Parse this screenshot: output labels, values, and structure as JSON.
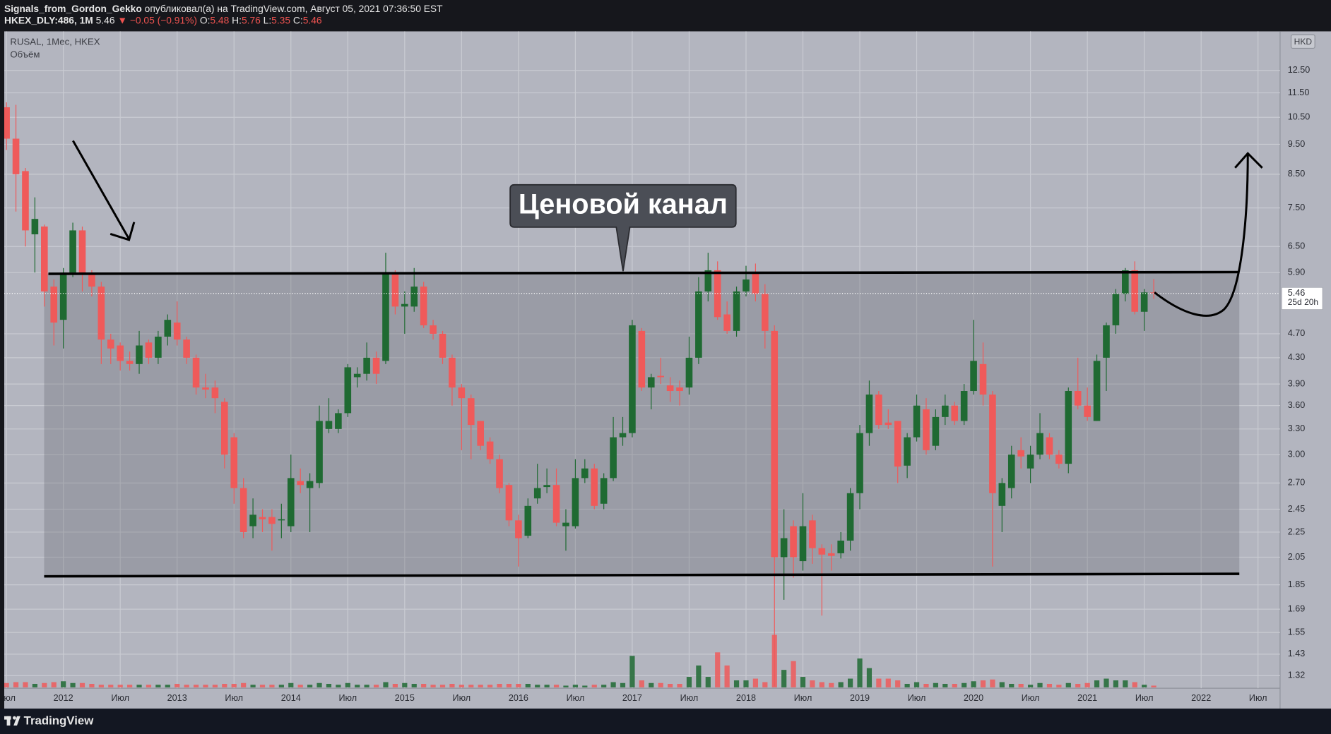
{
  "header": {
    "author": "Signals_from_Gordon_Gekko",
    "published": "опубликовал(а) на TradingView.com, Август 05, 2021 07:36:50 EST",
    "symbol": "HKEX_DLY:486, 1M",
    "last": "5.46",
    "change": "▼ −0.05 (−0.91%)",
    "o_label": "O:",
    "o": "5.48",
    "h_label": "H:",
    "h": "5.76",
    "l_label": "L:",
    "l": "5.35",
    "c_label": "C:",
    "c": "5.46"
  },
  "footer": {
    "logo": "TradingView"
  },
  "chart_data": {
    "type": "candlestick",
    "title": "RUSAL, 1Мес, HKEX",
    "volume_label": "Объём",
    "currency": "HKD",
    "annotation": "Ценовой канал",
    "last_price": 5.46,
    "countdown": "25d 20h",
    "log_scale": true,
    "grid": true,
    "up_color": "#1f6a32",
    "down_color": "#ef5a5a",
    "categories": [
      "Июл",
      null,
      null,
      null,
      null,
      null,
      "2012",
      null,
      null,
      null,
      null,
      null,
      "Июл",
      null,
      null,
      null,
      null,
      null,
      "2013",
      null,
      null,
      null,
      null,
      null,
      "Июл",
      null,
      null,
      null,
      null,
      null,
      "2014",
      null,
      null,
      null,
      null,
      null,
      "Июл",
      null,
      null,
      null,
      null,
      null,
      "2015",
      null,
      null,
      null,
      null,
      null,
      "Июл",
      null,
      null,
      null,
      null,
      null,
      "2016",
      null,
      null,
      null,
      null,
      null,
      "Июл",
      null,
      null,
      null,
      null,
      null,
      "2017",
      null,
      null,
      null,
      null,
      null,
      "Июл",
      null,
      null,
      null,
      null,
      null,
      "2018",
      null,
      null,
      null,
      null,
      null,
      "Июл",
      null,
      null,
      null,
      null,
      null,
      "2019",
      null,
      null,
      null,
      null,
      null,
      "Июл",
      null,
      null,
      null,
      null,
      null,
      "2020",
      null,
      null,
      null,
      null,
      null,
      "Июл",
      null,
      null,
      null,
      null,
      null,
      "2021",
      null,
      null,
      null,
      null,
      null,
      "Июл",
      null,
      null,
      null,
      null,
      null,
      "2022",
      null,
      null,
      null,
      null,
      null,
      "Июл",
      null,
      null
    ],
    "open": [
      10.9,
      9.7,
      8.6,
      6.8,
      7.0,
      5.6,
      4.95,
      5.9,
      6.9,
      5.9,
      5.6,
      4.6,
      4.5,
      4.25,
      4.2,
      4.55,
      4.3,
      4.65,
      4.9,
      4.6,
      4.3,
      3.85,
      3.85,
      3.65,
      3.2,
      2.65,
      2.3,
      2.38,
      2.38,
      2.35,
      2.3,
      2.72,
      2.65,
      2.7,
      3.3,
      3.3,
      3.5,
      4.0,
      4.05,
      4.3,
      4.25,
      5.9,
      5.2,
      5.2,
      5.6,
      4.85,
      4.7,
      4.3,
      3.85,
      3.7,
      3.4,
      3.15,
      2.95,
      2.68,
      2.35,
      2.22,
      2.55,
      2.66,
      2.68,
      2.3,
      2.3,
      2.75,
      2.85,
      2.5,
      2.75,
      3.2,
      3.25,
      4.75,
      3.85,
      4.02,
      3.88,
      3.85,
      3.85,
      4.3,
      5.5,
      5.95,
      5.05,
      4.75,
      5.5,
      5.9,
      5.45,
      4.75,
      2.05,
      2.3,
      2.02,
      2.35,
      2.12,
      2.08,
      2.08,
      2.18,
      2.6,
      3.25,
      3.75,
      3.38,
      3.4,
      2.88,
      3.2,
      3.55,
      3.1,
      3.45,
      3.6,
      3.4,
      3.8,
      4.2,
      3.75,
      2.48,
      2.65,
      3.05,
      2.85,
      3.0,
      3.2,
      3.0,
      2.9,
      3.8,
      3.6,
      3.4,
      4.3,
      4.85,
      5.45,
      5.95,
      5.1,
      5.48,
      null,
      null,
      null,
      null,
      null,
      null,
      null,
      null,
      null,
      null,
      null,
      null,
      null
    ],
    "high": [
      11.1,
      11.0,
      8.7,
      7.8,
      7.05,
      5.75,
      6.0,
      7.1,
      7.0,
      5.95,
      5.7,
      4.7,
      4.55,
      4.4,
      4.75,
      4.6,
      4.75,
      5.05,
      5.3,
      4.65,
      4.35,
      4.05,
      3.95,
      3.7,
      3.25,
      2.75,
      2.55,
      2.45,
      2.45,
      2.5,
      3.0,
      2.85,
      2.8,
      3.6,
      3.7,
      3.55,
      4.2,
      4.15,
      4.55,
      4.4,
      6.35,
      5.95,
      5.5,
      6.0,
      5.7,
      4.95,
      4.75,
      4.35,
      3.9,
      3.75,
      3.4,
      3.2,
      3.0,
      2.7,
      2.4,
      2.55,
      2.9,
      2.85,
      2.85,
      2.45,
      2.95,
      2.95,
      2.9,
      2.8,
      3.45,
      3.45,
      4.95,
      4.8,
      4.05,
      4.3,
      4.0,
      3.95,
      4.65,
      5.8,
      6.35,
      6.15,
      5.3,
      5.6,
      6.05,
      6.1,
      5.65,
      4.85,
      2.45,
      2.35,
      2.6,
      2.4,
      2.15,
      2.15,
      2.25,
      2.65,
      3.35,
      3.95,
      3.8,
      3.55,
      3.4,
      3.25,
      3.75,
      3.7,
      3.55,
      3.75,
      3.65,
      3.9,
      4.95,
      4.55,
      3.8,
      2.75,
      3.1,
      3.2,
      3.1,
      3.5,
      3.25,
      3.05,
      3.85,
      4.3,
      3.85,
      4.35,
      4.9,
      5.55,
      6.0,
      6.15,
      5.55,
      5.76,
      null,
      null,
      null,
      null,
      null,
      null,
      null,
      null,
      null,
      null,
      null,
      null,
      null
    ],
    "low": [
      9.3,
      7.4,
      6.5,
      5.9,
      5.2,
      4.5,
      4.45,
      5.8,
      5.5,
      5.4,
      4.2,
      4.2,
      4.1,
      4.1,
      4.05,
      4.2,
      4.2,
      4.5,
      4.5,
      4.2,
      3.75,
      3.7,
      3.5,
      2.85,
      2.5,
      2.2,
      2.2,
      2.25,
      2.1,
      2.2,
      2.25,
      2.6,
      2.25,
      2.65,
      3.25,
      3.25,
      3.45,
      3.85,
      3.95,
      3.9,
      4.2,
      5.05,
      4.7,
      5.1,
      4.8,
      4.6,
      4.2,
      3.6,
      3.05,
      2.95,
      3.05,
      2.9,
      2.6,
      2.3,
      1.98,
      2.2,
      2.5,
      2.6,
      2.3,
      2.1,
      2.28,
      2.7,
      2.45,
      2.45,
      2.72,
      3.1,
      3.2,
      3.8,
      3.55,
      3.9,
      3.65,
      3.6,
      3.75,
      4.2,
      5.3,
      4.95,
      4.7,
      4.65,
      5.4,
      5.3,
      4.45,
      1.27,
      1.75,
      1.9,
      1.95,
      2.0,
      1.65,
      1.95,
      2.04,
      2.1,
      2.45,
      3.1,
      3.3,
      3.3,
      2.7,
      2.75,
      3.15,
      3.0,
      3.05,
      3.35,
      3.35,
      3.35,
      3.75,
      3.6,
      1.98,
      2.25,
      2.55,
      2.85,
      2.7,
      2.95,
      2.95,
      2.85,
      2.8,
      3.55,
      3.4,
      3.4,
      3.8,
      4.7,
      5.3,
      5.05,
      4.75,
      5.35,
      null,
      null,
      null,
      null,
      null,
      null,
      null,
      null,
      null,
      null,
      null,
      null,
      null
    ],
    "close": [
      9.7,
      8.5,
      6.9,
      7.2,
      5.5,
      4.9,
      5.9,
      6.9,
      5.9,
      5.6,
      4.6,
      4.45,
      4.25,
      4.2,
      4.5,
      4.3,
      4.65,
      4.95,
      4.6,
      4.3,
      3.85,
      3.82,
      3.7,
      3.0,
      2.65,
      2.25,
      2.4,
      2.36,
      2.32,
      2.36,
      2.75,
      2.68,
      2.72,
      3.4,
      3.4,
      3.5,
      4.15,
      4.05,
      4.3,
      4.05,
      5.9,
      5.2,
      5.25,
      5.6,
      4.85,
      4.7,
      4.3,
      3.85,
      3.7,
      3.35,
      3.1,
      2.95,
      2.65,
      2.35,
      2.2,
      2.48,
      2.65,
      2.68,
      2.33,
      2.33,
      2.75,
      2.85,
      2.48,
      2.75,
      3.2,
      3.25,
      4.85,
      3.85,
      4.0,
      4.0,
      3.8,
      3.8,
      4.3,
      5.5,
      5.95,
      5.0,
      4.75,
      5.5,
      5.75,
      5.45,
      4.75,
      2.05,
      2.2,
      2.05,
      2.3,
      2.12,
      2.07,
      2.06,
      2.18,
      2.6,
      3.25,
      3.75,
      3.35,
      3.35,
      2.87,
      3.2,
      3.6,
      3.05,
      3.45,
      3.6,
      3.4,
      3.8,
      4.25,
      3.75,
      2.6,
      2.7,
      3.0,
      2.98,
      3.0,
      3.25,
      3.0,
      2.9,
      3.8,
      3.6,
      3.45,
      4.25,
      4.85,
      5.45,
      5.95,
      5.1,
      5.48,
      5.46,
      null,
      null,
      null,
      null,
      null,
      null,
      null,
      null,
      null,
      null,
      null,
      null,
      null
    ],
    "volume": [
      5,
      6,
      6,
      4,
      5,
      6,
      7,
      5,
      5,
      4,
      3,
      3,
      3,
      3,
      3,
      3,
      3,
      3,
      4,
      3,
      3,
      3,
      3,
      4,
      4,
      5,
      3,
      3,
      3,
      3,
      5,
      3,
      3,
      5,
      4,
      3,
      5,
      3,
      3,
      3,
      6,
      4,
      5,
      4,
      4,
      3,
      3,
      4,
      3,
      3,
      3,
      3,
      4,
      4,
      4,
      4,
      3,
      3,
      3,
      2,
      3,
      2,
      3,
      3,
      6,
      5,
      36,
      8,
      5,
      5,
      4,
      4,
      12,
      25,
      12,
      40,
      25,
      8,
      8,
      10,
      6,
      60,
      20,
      30,
      12,
      8,
      6,
      5,
      6,
      10,
      33,
      22,
      10,
      10,
      8,
      4,
      6,
      4,
      5,
      4,
      4,
      5,
      7,
      8,
      9,
      6,
      4,
      4,
      3,
      5,
      4,
      3,
      5,
      4,
      5,
      8,
      10,
      8,
      8,
      6,
      3,
      2,
      null,
      null,
      null,
      null,
      null,
      null,
      null,
      null,
      null,
      null,
      null,
      null,
      null
    ],
    "ylim": [
      1.26,
      14.45
    ],
    "yticks": [
      {
        "value": 12.5,
        "label": "12.50"
      },
      {
        "value": 11.5,
        "label": "11.50"
      },
      {
        "value": 10.5,
        "label": "10.50"
      },
      {
        "value": 9.5,
        "label": "9.50"
      },
      {
        "value": 8.5,
        "label": "8.50"
      },
      {
        "value": 7.5,
        "label": "7.50"
      },
      {
        "value": 6.5,
        "label": "6.50"
      },
      {
        "value": 5.9,
        "label": "5.90"
      },
      {
        "value": 4.7,
        "label": "4.70"
      },
      {
        "value": 4.3,
        "label": "4.30"
      },
      {
        "value": 3.9,
        "label": "3.90"
      },
      {
        "value": 3.6,
        "label": "3.60"
      },
      {
        "value": 3.3,
        "label": "3.30"
      },
      {
        "value": 3,
        "label": "3.00"
      },
      {
        "value": 2.7,
        "label": "2.70"
      },
      2.45,
      2.25,
      2.05,
      1.85,
      1.69,
      1.55,
      1.43,
      1.32
    ]
  }
}
